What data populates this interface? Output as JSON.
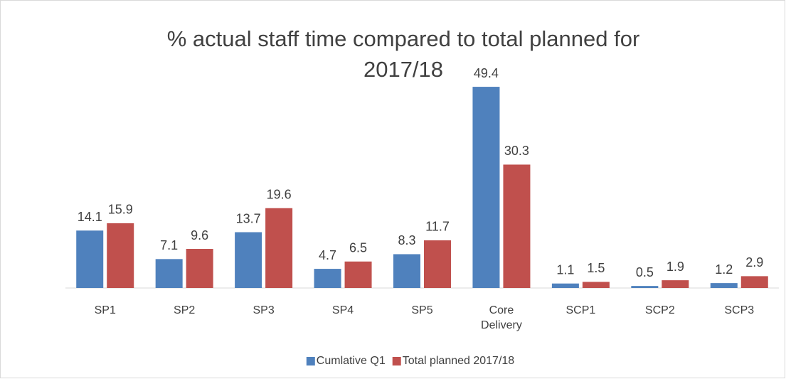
{
  "chart_data": {
    "type": "bar",
    "title": "% actual staff time compared to total planned for 2017/18",
    "categories": [
      "SP1",
      "SP2",
      "SP3",
      "SP4",
      "SP5",
      "Core Delivery",
      "SCP1",
      "SCP2",
      "SCP3"
    ],
    "series": [
      {
        "name": "Cumlative Q1",
        "color": "#4f81bd",
        "values": [
          14.1,
          7.1,
          13.7,
          4.7,
          8.3,
          49.4,
          1.1,
          0.5,
          1.2
        ]
      },
      {
        "name": "Total planned 2017/18",
        "color": "#c0504d",
        "values": [
          15.9,
          9.6,
          19.6,
          6.5,
          11.7,
          30.3,
          1.5,
          1.9,
          2.9
        ]
      }
    ],
    "ylim": [
      0,
      55
    ],
    "legend": "bottom"
  }
}
